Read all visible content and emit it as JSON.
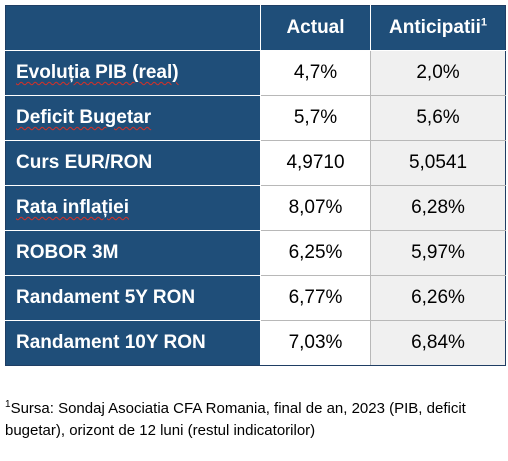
{
  "table": {
    "columns": [
      "Actual",
      "Anticipatii"
    ],
    "column_footnote_mark": "1",
    "rows": [
      {
        "label": "Evoluția PIB (real)",
        "actual": "4,7%",
        "anticipated": "2,0%"
      },
      {
        "label": "Deficit Bugetar",
        "actual": "5,7%",
        "anticipated": "5,6%"
      },
      {
        "label": "Curs EUR/RON",
        "actual": "4,9710",
        "anticipated": "5,0541"
      },
      {
        "label": "Rata inflației",
        "actual": "8,07%",
        "anticipated": "6,28%"
      },
      {
        "label": "ROBOR 3M",
        "actual": "6,25%",
        "anticipated": "5,97%"
      },
      {
        "label": "Randament 5Y RON",
        "actual": "6,77%",
        "anticipated": "6,26%"
      },
      {
        "label": "Randament 10Y RON",
        "actual": "7,03%",
        "anticipated": "6,84%"
      }
    ]
  },
  "footnote": {
    "mark": "1",
    "text": "Sursa: Sondaj Asociatia CFA Romania, final de an, 2023 (PIB, deficit bugetar), orizont de 12 luni (restul indicatorilor)"
  },
  "colors": {
    "header_bg": "#1f4e79",
    "header_text": "#ffffff",
    "alt_cell_bg": "#f0f0f0"
  }
}
